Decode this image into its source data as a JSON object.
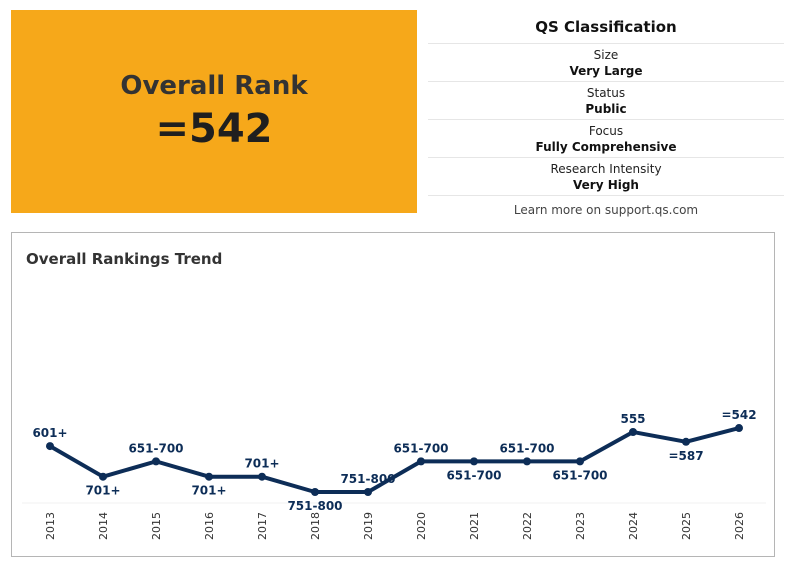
{
  "rank": {
    "title": "Overall Rank",
    "value": "=542",
    "background": "#f6a81a"
  },
  "classification": {
    "title": "QS Classification",
    "rows": [
      {
        "label": "Size",
        "value": "Very Large"
      },
      {
        "label": "Status",
        "value": "Public"
      },
      {
        "label": "Focus",
        "value": "Fully Comprehensive"
      },
      {
        "label": "Research Intensity",
        "value": "Very High"
      }
    ],
    "link_text": "Learn more on support.qs.com"
  },
  "trend": {
    "title": "Overall Rankings Trend"
  },
  "chart_data": {
    "type": "line",
    "title": "Overall Rankings Trend",
    "x": [
      "2013",
      "2014",
      "2015",
      "2016",
      "2017",
      "2018",
      "2019",
      "2020",
      "2021",
      "2022",
      "2023",
      "2024",
      "2025",
      "2026"
    ],
    "labels": [
      "601+",
      "701+",
      "651-700",
      "701+",
      "701+",
      "751-800",
      "751-800",
      "651-700",
      "651-700",
      "651-700",
      "651-700",
      "555",
      "=587",
      "=542"
    ],
    "values": [
      601,
      701,
      651,
      701,
      701,
      751,
      751,
      651,
      651,
      651,
      651,
      555,
      587,
      542
    ],
    "y_reversed": true,
    "ylim": [
      500,
      760
    ],
    "grid": false,
    "legend": "none",
    "line_color": "#0d2d57"
  }
}
